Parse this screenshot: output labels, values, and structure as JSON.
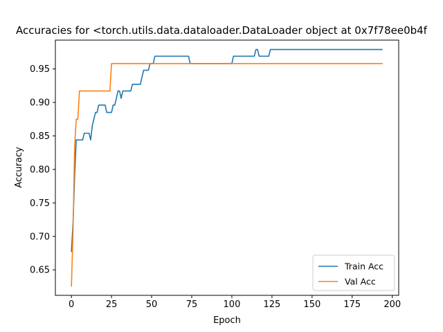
{
  "chart_data": {
    "type": "line",
    "title": "Accuracies for <torch.utils.data.dataloader.DataLoader object at 0x7f78ee0b4f",
    "xlabel": "Epoch",
    "ylabel": "Accuracy",
    "xlim": [
      -10,
      204
    ],
    "ylim": [
      0.612,
      0.993
    ],
    "xticks": [
      0,
      25,
      50,
      75,
      100,
      125,
      150,
      175,
      200
    ],
    "yticks": [
      0.65,
      0.7,
      0.75,
      0.8,
      0.85,
      0.9,
      0.95
    ],
    "xtick_labels": [
      "0",
      "25",
      "50",
      "75",
      "100",
      "125",
      "150",
      "175",
      "200"
    ],
    "ytick_labels": [
      "0.65",
      "0.70",
      "0.75",
      "0.80",
      "0.85",
      "0.90",
      "0.95"
    ],
    "grid": false,
    "legend_position": "bottom-right",
    "series": [
      {
        "name": "Train Acc",
        "color": "#1f77b4",
        "points": [
          [
            0,
            0.677
          ],
          [
            1,
            0.72
          ],
          [
            2,
            0.79
          ],
          [
            3,
            0.844
          ],
          [
            4,
            0.844
          ],
          [
            5,
            0.844
          ],
          [
            6,
            0.844
          ],
          [
            7,
            0.844
          ],
          [
            8,
            0.854
          ],
          [
            9,
            0.854
          ],
          [
            10,
            0.854
          ],
          [
            11,
            0.854
          ],
          [
            12,
            0.844
          ],
          [
            13,
            0.865
          ],
          [
            14,
            0.875
          ],
          [
            15,
            0.885
          ],
          [
            16,
            0.885
          ],
          [
            17,
            0.896
          ],
          [
            18,
            0.896
          ],
          [
            19,
            0.896
          ],
          [
            20,
            0.896
          ],
          [
            21,
            0.896
          ],
          [
            22,
            0.885
          ],
          [
            23,
            0.885
          ],
          [
            24,
            0.885
          ],
          [
            25,
            0.885
          ],
          [
            26,
            0.896
          ],
          [
            27,
            0.896
          ],
          [
            28,
            0.906
          ],
          [
            29,
            0.917
          ],
          [
            30,
            0.917
          ],
          [
            31,
            0.906
          ],
          [
            32,
            0.917
          ],
          [
            33,
            0.917
          ],
          [
            34,
            0.917
          ],
          [
            35,
            0.917
          ],
          [
            36,
            0.917
          ],
          [
            37,
            0.917
          ],
          [
            38,
            0.927
          ],
          [
            39,
            0.927
          ],
          [
            40,
            0.927
          ],
          [
            41,
            0.927
          ],
          [
            42,
            0.927
          ],
          [
            43,
            0.927
          ],
          [
            44,
            0.938
          ],
          [
            45,
            0.948
          ],
          [
            46,
            0.948
          ],
          [
            47,
            0.948
          ],
          [
            48,
            0.948
          ],
          [
            49,
            0.958
          ],
          [
            50,
            0.958
          ],
          [
            51,
            0.958
          ],
          [
            52,
            0.969
          ],
          [
            53,
            0.969
          ],
          [
            72,
            0.969
          ],
          [
            73,
            0.969
          ],
          [
            74,
            0.958
          ],
          [
            99,
            0.958
          ],
          [
            100,
            0.958
          ],
          [
            101,
            0.969
          ],
          [
            114,
            0.969
          ],
          [
            115,
            0.979
          ],
          [
            116,
            0.979
          ],
          [
            117,
            0.969
          ],
          [
            123,
            0.969
          ],
          [
            124,
            0.979
          ],
          [
            194,
            0.979
          ]
        ]
      },
      {
        "name": "Val Acc",
        "color": "#ff7f0e",
        "points": [
          [
            0,
            0.625
          ],
          [
            1,
            0.708
          ],
          [
            2,
            0.833
          ],
          [
            3,
            0.875
          ],
          [
            4,
            0.875
          ],
          [
            5,
            0.917
          ],
          [
            24,
            0.917
          ],
          [
            25,
            0.958
          ],
          [
            194,
            0.958
          ]
        ]
      }
    ]
  }
}
